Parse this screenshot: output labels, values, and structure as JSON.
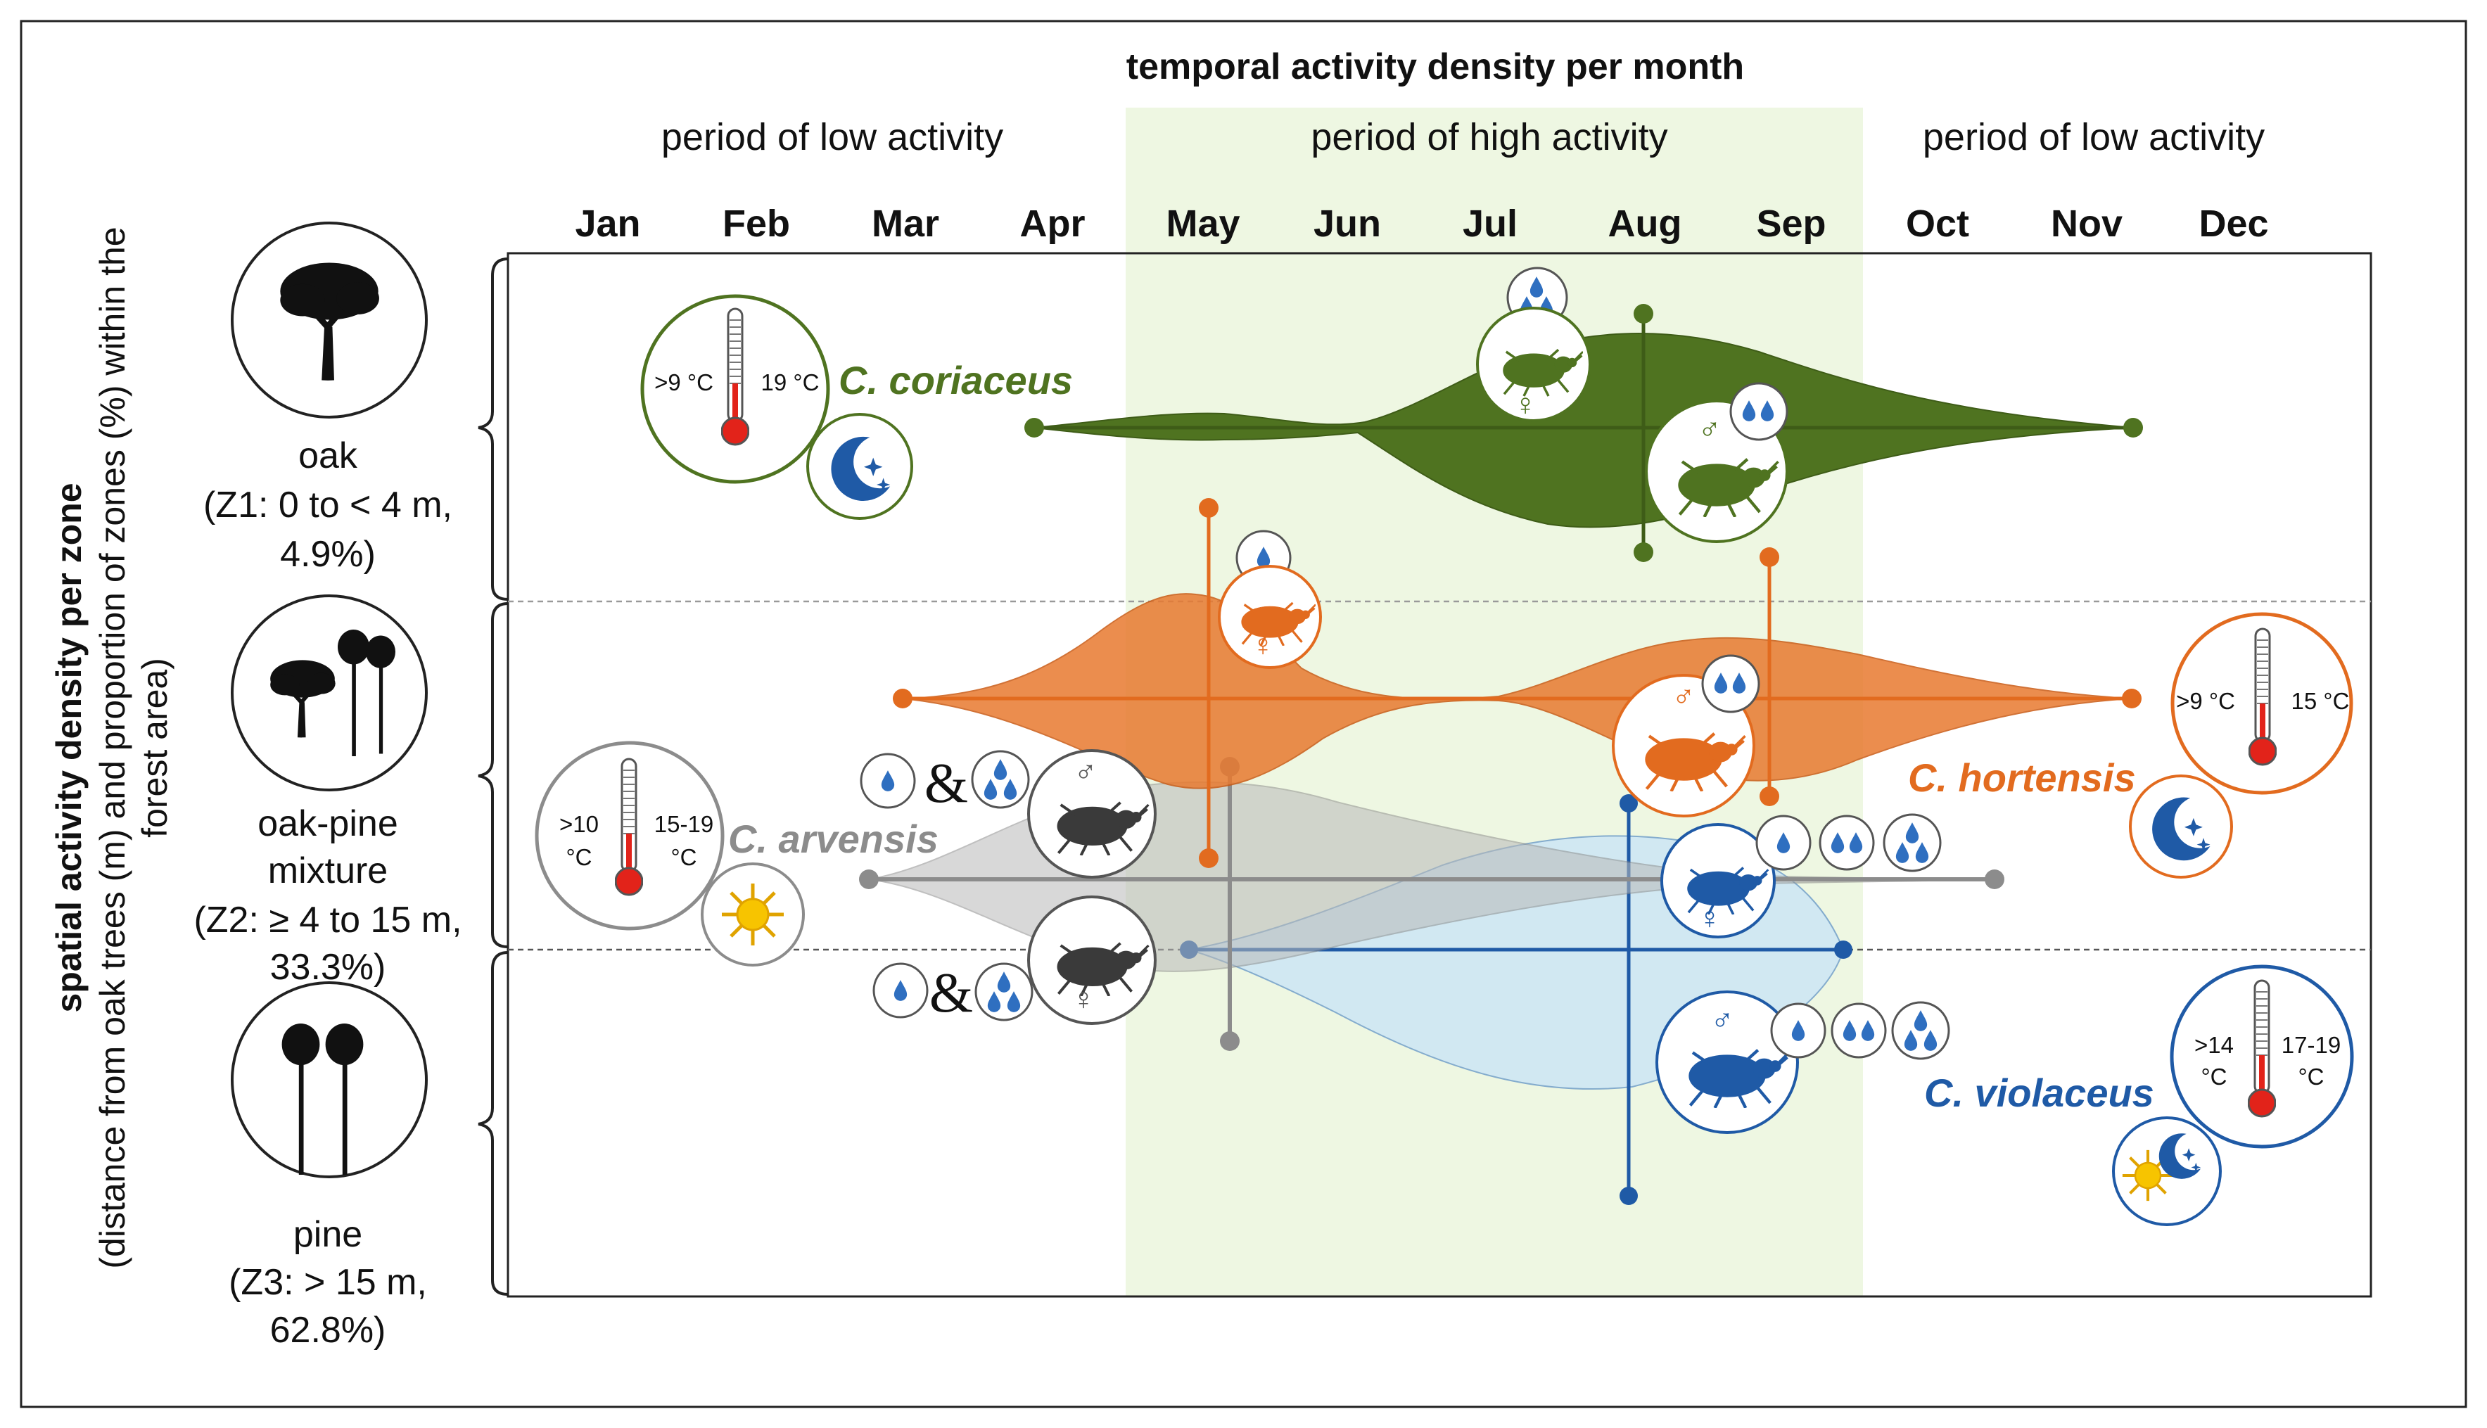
{
  "header": {
    "title": "temporal activity density per month",
    "periods": [
      "period of low activity",
      "period of high activity",
      "period of low activity"
    ],
    "months": [
      "Jan",
      "Feb",
      "Mar",
      "Apr",
      "May",
      "Jun",
      "Jul",
      "Aug",
      "Sep",
      "Oct",
      "Nov",
      "Dec"
    ]
  },
  "y_axis": {
    "label_bold": "spatial activity density per zone",
    "label_line2": "(distance from oak trees (m) and proportion of zones (%) within the",
    "label_line3": "forest area)"
  },
  "zones": [
    {
      "name": "oak",
      "line2": "(Z1: 0 to < 4 m,",
      "line3": "4.9%)"
    },
    {
      "name": "oak-pine",
      "line2": "mixture",
      "line3": "(Z2: ≥ 4 to 15 m,",
      "line4": "33.3%)"
    },
    {
      "name": "pine",
      "line2": "(Z3: > 15 m,",
      "line3": "62.8%)"
    }
  ],
  "species": [
    {
      "name": "C. coriaceus",
      "color": "#4f7320",
      "temp_low": ">9 °C",
      "temp_high": "19 °C",
      "activity": "nocturnal",
      "start": "Apr",
      "end": "Nov",
      "peak": "Aug",
      "zone": "oak",
      "sex_symbols": [
        "♀",
        "♂"
      ]
    },
    {
      "name": "C. hortensis",
      "color": "#e26b1f",
      "temp_low": ">9 °C",
      "temp_high": "15 °C",
      "activity": "nocturnal",
      "start": "Mar",
      "end": "Nov",
      "peaks": [
        "May",
        "Sep"
      ],
      "zone": "oak-pine",
      "sex_symbols": [
        "♀",
        "♂"
      ]
    },
    {
      "name": "C. arvensis",
      "color": "#8c8c8c",
      "temp_low_1": ">10",
      "temp_low_2": "°C",
      "temp_high_1": "15-19",
      "temp_high_2": "°C",
      "activity": "diurnal",
      "start": "Mar",
      "end": "Oct",
      "peak": "May",
      "zone": "oak-pine",
      "sex_symbols": [
        "♂",
        "♀"
      ],
      "connector": "&"
    },
    {
      "name": "C. violaceus",
      "color": "#1f5aa6",
      "temp_low_1": ">14",
      "temp_low_2": "°C",
      "temp_high_1": "17-19",
      "temp_high_2": "°C",
      "activity": "diurnal and nocturnal",
      "start": "May",
      "end": "Sep",
      "peak": "Aug",
      "zone": "oak-pine to pine",
      "sex_symbols": [
        "♀",
        "♂"
      ]
    }
  ],
  "colors": {
    "high_period_bg": "#eef7e2",
    "frame": "#222222",
    "rain": "#2f6fc0"
  }
}
